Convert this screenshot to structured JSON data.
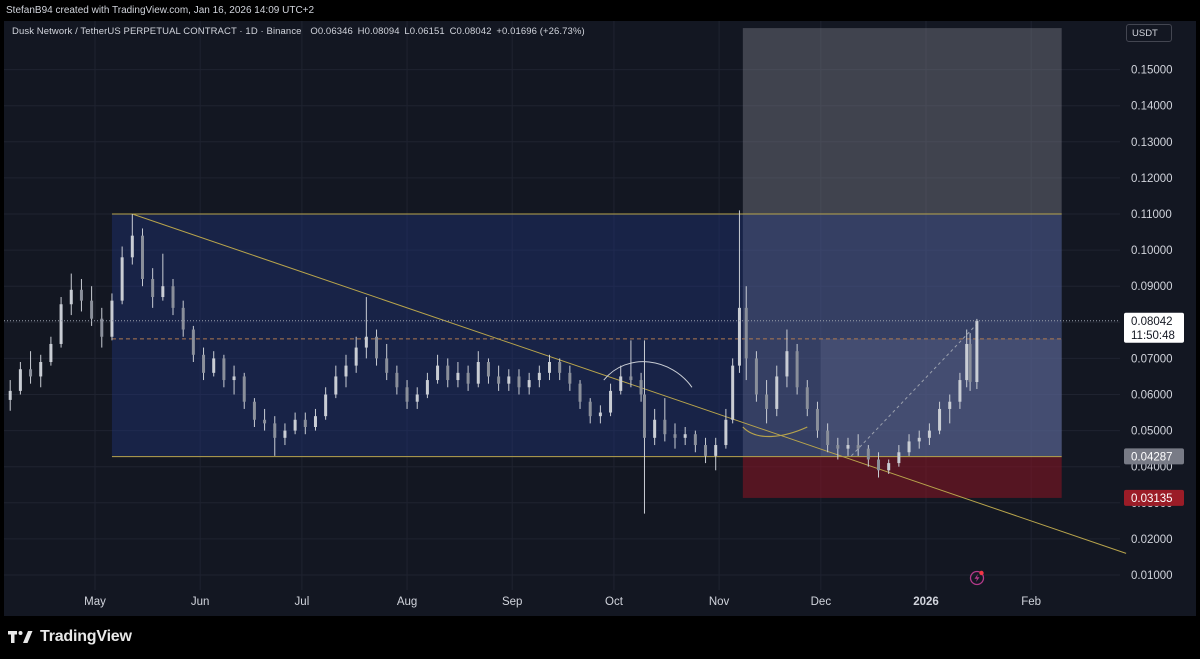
{
  "header": {
    "attribution": "StefanB94 created with TradingView.com, Jan 16, 2026 14:09 UTC+2"
  },
  "legend": {
    "symbol": "Dusk Network / TetherUS PERPETUAL CONTRACT · 1D · Binance",
    "open_label": "O",
    "open": "0.06346",
    "high_label": "H",
    "high": "0.08094",
    "low_label": "L",
    "low": "0.06151",
    "close_label": "C",
    "close": "0.08042",
    "change": "+0.01696 (+26.73%)"
  },
  "currency_button": "USDT",
  "footer": {
    "brand": "TradingView"
  },
  "chart_data": {
    "type": "candlestick",
    "y_scale": "linear",
    "ylim": [
      0.005,
      0.165
    ],
    "y_ticks": [
      "0.15000",
      "0.14000",
      "0.13000",
      "0.12000",
      "0.11000",
      "0.10000",
      "0.09000",
      "0.08000",
      "0.07000",
      "0.06000",
      "0.05000",
      "0.04000",
      "0.03000",
      "0.02000",
      "0.01000"
    ],
    "x_labels": [
      {
        "text": "May",
        "date": "2025-05-01"
      },
      {
        "text": "Jun",
        "date": "2025-06-01"
      },
      {
        "text": "Jul",
        "date": "2025-07-01"
      },
      {
        "text": "Aug",
        "date": "2025-08-01"
      },
      {
        "text": "Sep",
        "date": "2025-09-01"
      },
      {
        "text": "Oct",
        "date": "2025-10-01"
      },
      {
        "text": "Nov",
        "date": "2025-11-01"
      },
      {
        "text": "Dec",
        "date": "2025-12-01"
      },
      {
        "text": "2026",
        "date": "2026-01-01",
        "bold": true
      },
      {
        "text": "Feb",
        "date": "2026-02-01"
      }
    ],
    "grid": true,
    "up_color": "#c9cdd4",
    "down_color": "#c9cdd4",
    "series": [
      {
        "date": "2025-04-06",
        "o": 0.0585,
        "h": 0.064,
        "l": 0.0555,
        "c": 0.061
      },
      {
        "date": "2025-04-09",
        "o": 0.061,
        "h": 0.069,
        "l": 0.06,
        "c": 0.067
      },
      {
        "date": "2025-04-12",
        "o": 0.067,
        "h": 0.072,
        "l": 0.063,
        "c": 0.065
      },
      {
        "date": "2025-04-15",
        "o": 0.065,
        "h": 0.071,
        "l": 0.062,
        "c": 0.069
      },
      {
        "date": "2025-04-18",
        "o": 0.069,
        "h": 0.076,
        "l": 0.068,
        "c": 0.074
      },
      {
        "date": "2025-04-21",
        "o": 0.074,
        "h": 0.087,
        "l": 0.073,
        "c": 0.085
      },
      {
        "date": "2025-04-24",
        "o": 0.085,
        "h": 0.0935,
        "l": 0.082,
        "c": 0.089
      },
      {
        "date": "2025-04-27",
        "o": 0.089,
        "h": 0.092,
        "l": 0.083,
        "c": 0.086
      },
      {
        "date": "2025-04-30",
        "o": 0.086,
        "h": 0.09,
        "l": 0.079,
        "c": 0.081
      },
      {
        "date": "2025-05-03",
        "o": 0.081,
        "h": 0.084,
        "l": 0.073,
        "c": 0.076
      },
      {
        "date": "2025-05-06",
        "o": 0.076,
        "h": 0.088,
        "l": 0.075,
        "c": 0.086
      },
      {
        "date": "2025-05-09",
        "o": 0.086,
        "h": 0.101,
        "l": 0.085,
        "c": 0.098
      },
      {
        "date": "2025-05-12",
        "o": 0.098,
        "h": 0.11,
        "l": 0.096,
        "c": 0.104
      },
      {
        "date": "2025-05-15",
        "o": 0.104,
        "h": 0.106,
        "l": 0.09,
        "c": 0.092
      },
      {
        "date": "2025-05-18",
        "o": 0.092,
        "h": 0.095,
        "l": 0.084,
        "c": 0.087
      },
      {
        "date": "2025-05-21",
        "o": 0.087,
        "h": 0.099,
        "l": 0.086,
        "c": 0.09
      },
      {
        "date": "2025-05-24",
        "o": 0.09,
        "h": 0.092,
        "l": 0.082,
        "c": 0.084
      },
      {
        "date": "2025-05-27",
        "o": 0.084,
        "h": 0.086,
        "l": 0.076,
        "c": 0.078
      },
      {
        "date": "2025-05-30",
        "o": 0.078,
        "h": 0.079,
        "l": 0.069,
        "c": 0.071
      },
      {
        "date": "2025-06-02",
        "o": 0.071,
        "h": 0.073,
        "l": 0.064,
        "c": 0.066
      },
      {
        "date": "2025-06-05",
        "o": 0.066,
        "h": 0.072,
        "l": 0.065,
        "c": 0.07
      },
      {
        "date": "2025-06-08",
        "o": 0.07,
        "h": 0.071,
        "l": 0.062,
        "c": 0.064
      },
      {
        "date": "2025-06-11",
        "o": 0.064,
        "h": 0.068,
        "l": 0.06,
        "c": 0.065
      },
      {
        "date": "2025-06-14",
        "o": 0.065,
        "h": 0.066,
        "l": 0.056,
        "c": 0.058
      },
      {
        "date": "2025-06-17",
        "o": 0.058,
        "h": 0.059,
        "l": 0.051,
        "c": 0.053
      },
      {
        "date": "2025-06-20",
        "o": 0.053,
        "h": 0.056,
        "l": 0.05,
        "c": 0.052
      },
      {
        "date": "2025-06-23",
        "o": 0.052,
        "h": 0.054,
        "l": 0.043,
        "c": 0.048
      },
      {
        "date": "2025-06-26",
        "o": 0.048,
        "h": 0.052,
        "l": 0.046,
        "c": 0.05
      },
      {
        "date": "2025-06-29",
        "o": 0.05,
        "h": 0.055,
        "l": 0.049,
        "c": 0.053
      },
      {
        "date": "2025-07-02",
        "o": 0.053,
        "h": 0.055,
        "l": 0.049,
        "c": 0.051
      },
      {
        "date": "2025-07-05",
        "o": 0.051,
        "h": 0.056,
        "l": 0.05,
        "c": 0.054
      },
      {
        "date": "2025-07-08",
        "o": 0.054,
        "h": 0.062,
        "l": 0.053,
        "c": 0.06
      },
      {
        "date": "2025-07-11",
        "o": 0.06,
        "h": 0.068,
        "l": 0.059,
        "c": 0.065
      },
      {
        "date": "2025-07-14",
        "o": 0.065,
        "h": 0.071,
        "l": 0.062,
        "c": 0.068
      },
      {
        "date": "2025-07-17",
        "o": 0.068,
        "h": 0.076,
        "l": 0.066,
        "c": 0.073
      },
      {
        "date": "2025-07-20",
        "o": 0.073,
        "h": 0.087,
        "l": 0.07,
        "c": 0.076
      },
      {
        "date": "2025-07-23",
        "o": 0.076,
        "h": 0.078,
        "l": 0.068,
        "c": 0.07
      },
      {
        "date": "2025-07-26",
        "o": 0.07,
        "h": 0.074,
        "l": 0.064,
        "c": 0.066
      },
      {
        "date": "2025-07-29",
        "o": 0.066,
        "h": 0.068,
        "l": 0.06,
        "c": 0.062
      },
      {
        "date": "2025-08-01",
        "o": 0.062,
        "h": 0.064,
        "l": 0.056,
        "c": 0.058
      },
      {
        "date": "2025-08-04",
        "o": 0.058,
        "h": 0.062,
        "l": 0.056,
        "c": 0.06
      },
      {
        "date": "2025-08-07",
        "o": 0.06,
        "h": 0.066,
        "l": 0.059,
        "c": 0.064
      },
      {
        "date": "2025-08-10",
        "o": 0.064,
        "h": 0.071,
        "l": 0.063,
        "c": 0.068
      },
      {
        "date": "2025-08-13",
        "o": 0.068,
        "h": 0.07,
        "l": 0.062,
        "c": 0.064
      },
      {
        "date": "2025-08-16",
        "o": 0.064,
        "h": 0.069,
        "l": 0.062,
        "c": 0.066
      },
      {
        "date": "2025-08-19",
        "o": 0.066,
        "h": 0.068,
        "l": 0.061,
        "c": 0.063
      },
      {
        "date": "2025-08-22",
        "o": 0.063,
        "h": 0.072,
        "l": 0.062,
        "c": 0.069
      },
      {
        "date": "2025-08-25",
        "o": 0.069,
        "h": 0.07,
        "l": 0.063,
        "c": 0.065
      },
      {
        "date": "2025-08-28",
        "o": 0.065,
        "h": 0.068,
        "l": 0.061,
        "c": 0.063
      },
      {
        "date": "2025-08-31",
        "o": 0.063,
        "h": 0.067,
        "l": 0.061,
        "c": 0.065
      },
      {
        "date": "2025-09-03",
        "o": 0.065,
        "h": 0.067,
        "l": 0.06,
        "c": 0.062
      },
      {
        "date": "2025-09-06",
        "o": 0.062,
        "h": 0.066,
        "l": 0.06,
        "c": 0.064
      },
      {
        "date": "2025-09-09",
        "o": 0.064,
        "h": 0.068,
        "l": 0.062,
        "c": 0.066
      },
      {
        "date": "2025-09-12",
        "o": 0.066,
        "h": 0.071,
        "l": 0.064,
        "c": 0.069
      },
      {
        "date": "2025-09-15",
        "o": 0.069,
        "h": 0.07,
        "l": 0.064,
        "c": 0.066
      },
      {
        "date": "2025-09-18",
        "o": 0.066,
        "h": 0.068,
        "l": 0.061,
        "c": 0.063
      },
      {
        "date": "2025-09-21",
        "o": 0.063,
        "h": 0.064,
        "l": 0.056,
        "c": 0.058
      },
      {
        "date": "2025-09-24",
        "o": 0.058,
        "h": 0.059,
        "l": 0.052,
        "c": 0.054
      },
      {
        "date": "2025-09-27",
        "o": 0.054,
        "h": 0.057,
        "l": 0.052,
        "c": 0.055
      },
      {
        "date": "2025-09-30",
        "o": 0.055,
        "h": 0.063,
        "l": 0.054,
        "c": 0.061
      },
      {
        "date": "2025-10-03",
        "o": 0.061,
        "h": 0.068,
        "l": 0.06,
        "c": 0.065
      },
      {
        "date": "2025-10-06",
        "o": 0.065,
        "h": 0.075,
        "l": 0.062,
        "c": 0.064
      },
      {
        "date": "2025-10-09",
        "o": 0.064,
        "h": 0.066,
        "l": 0.058,
        "c": 0.06
      },
      {
        "date": "2025-10-10",
        "o": 0.06,
        "h": 0.075,
        "l": 0.027,
        "c": 0.048
      },
      {
        "date": "2025-10-13",
        "o": 0.048,
        "h": 0.056,
        "l": 0.046,
        "c": 0.053
      },
      {
        "date": "2025-10-16",
        "o": 0.053,
        "h": 0.059,
        "l": 0.047,
        "c": 0.049
      },
      {
        "date": "2025-10-19",
        "o": 0.049,
        "h": 0.052,
        "l": 0.045,
        "c": 0.048
      },
      {
        "date": "2025-10-22",
        "o": 0.048,
        "h": 0.051,
        "l": 0.046,
        "c": 0.049
      },
      {
        "date": "2025-10-25",
        "o": 0.049,
        "h": 0.05,
        "l": 0.044,
        "c": 0.046
      },
      {
        "date": "2025-10-28",
        "o": 0.046,
        "h": 0.048,
        "l": 0.041,
        "c": 0.043
      },
      {
        "date": "2025-10-31",
        "o": 0.043,
        "h": 0.048,
        "l": 0.039,
        "c": 0.046
      },
      {
        "date": "2025-11-03",
        "o": 0.046,
        "h": 0.056,
        "l": 0.045,
        "c": 0.053
      },
      {
        "date": "2025-11-05",
        "o": 0.053,
        "h": 0.07,
        "l": 0.052,
        "c": 0.068
      },
      {
        "date": "2025-11-07",
        "o": 0.068,
        "h": 0.111,
        "l": 0.066,
        "c": 0.084
      },
      {
        "date": "2025-11-09",
        "o": 0.084,
        "h": 0.09,
        "l": 0.064,
        "c": 0.07
      },
      {
        "date": "2025-11-12",
        "o": 0.07,
        "h": 0.072,
        "l": 0.058,
        "c": 0.06
      },
      {
        "date": "2025-11-15",
        "o": 0.06,
        "h": 0.064,
        "l": 0.052,
        "c": 0.056
      },
      {
        "date": "2025-11-18",
        "o": 0.056,
        "h": 0.068,
        "l": 0.054,
        "c": 0.065
      },
      {
        "date": "2025-11-21",
        "o": 0.065,
        "h": 0.078,
        "l": 0.062,
        "c": 0.072
      },
      {
        "date": "2025-11-24",
        "o": 0.072,
        "h": 0.074,
        "l": 0.06,
        "c": 0.062
      },
      {
        "date": "2025-11-27",
        "o": 0.062,
        "h": 0.064,
        "l": 0.054,
        "c": 0.056
      },
      {
        "date": "2025-11-30",
        "o": 0.056,
        "h": 0.058,
        "l": 0.048,
        "c": 0.05
      },
      {
        "date": "2025-12-03",
        "o": 0.05,
        "h": 0.052,
        "l": 0.044,
        "c": 0.046
      },
      {
        "date": "2025-12-06",
        "o": 0.046,
        "h": 0.048,
        "l": 0.042,
        "c": 0.045
      },
      {
        "date": "2025-12-09",
        "o": 0.045,
        "h": 0.048,
        "l": 0.043,
        "c": 0.046
      },
      {
        "date": "2025-12-12",
        "o": 0.046,
        "h": 0.049,
        "l": 0.043,
        "c": 0.045
      },
      {
        "date": "2025-12-15",
        "o": 0.045,
        "h": 0.046,
        "l": 0.04,
        "c": 0.042
      },
      {
        "date": "2025-12-18",
        "o": 0.042,
        "h": 0.044,
        "l": 0.037,
        "c": 0.039
      },
      {
        "date": "2025-12-21",
        "o": 0.039,
        "h": 0.042,
        "l": 0.038,
        "c": 0.041
      },
      {
        "date": "2025-12-24",
        "o": 0.041,
        "h": 0.046,
        "l": 0.04,
        "c": 0.044
      },
      {
        "date": "2025-12-27",
        "o": 0.044,
        "h": 0.049,
        "l": 0.043,
        "c": 0.047
      },
      {
        "date": "2025-12-30",
        "o": 0.047,
        "h": 0.05,
        "l": 0.045,
        "c": 0.048
      },
      {
        "date": "2026-01-02",
        "o": 0.048,
        "h": 0.052,
        "l": 0.046,
        "c": 0.05
      },
      {
        "date": "2026-01-05",
        "o": 0.05,
        "h": 0.058,
        "l": 0.049,
        "c": 0.056
      },
      {
        "date": "2026-01-08",
        "o": 0.056,
        "h": 0.06,
        "l": 0.052,
        "c": 0.058
      },
      {
        "date": "2026-01-11",
        "o": 0.058,
        "h": 0.066,
        "l": 0.056,
        "c": 0.064
      },
      {
        "date": "2026-01-13",
        "o": 0.064,
        "h": 0.078,
        "l": 0.062,
        "c": 0.074
      },
      {
        "date": "2026-01-14",
        "o": 0.074,
        "h": 0.077,
        "l": 0.061,
        "c": 0.0635
      },
      {
        "date": "2026-01-16",
        "o": 0.06346,
        "h": 0.08094,
        "l": 0.06151,
        "c": 0.08042
      }
    ],
    "drawings": {
      "range_box": {
        "date_start": "2025-05-06",
        "date_end": "2026-02-10",
        "top": 0.11,
        "bottom": 0.0428
      },
      "trendline": {
        "date_start": "2025-05-12",
        "price_start": 0.11,
        "date_end": "2026-03-01",
        "price_end": 0.016
      },
      "long_position": {
        "date_start": "2025-11-08",
        "date_end": "2026-02-10",
        "target": 0.1615,
        "entry": 0.04287,
        "stop": 0.03135
      },
      "dashed_level": 0.0754
    },
    "price_labels": [
      {
        "label": "last_price",
        "value": "0.08042",
        "countdown": "11:50:48",
        "style": "light"
      },
      {
        "label": "entry",
        "value": "0.04287",
        "style": "grey"
      },
      {
        "label": "stop",
        "value": "0.03135",
        "style": "red"
      }
    ]
  }
}
